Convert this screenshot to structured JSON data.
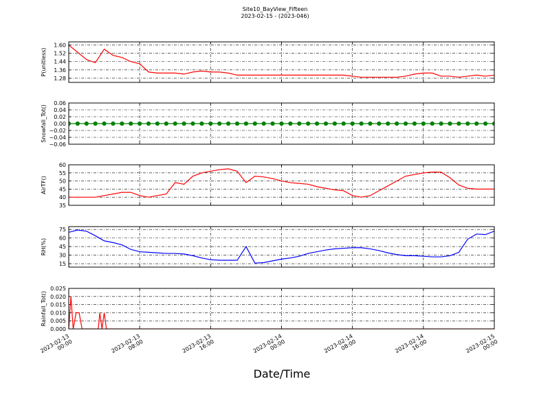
{
  "title": "Site10_BayView_Fifteen",
  "subtitle": "2023-02-15 - (2023-046)",
  "xlabel": "Date/Time",
  "x": [
    "2023-02-13 00:00",
    "2023-02-13 01:00",
    "2023-02-13 02:00",
    "2023-02-13 03:00",
    "2023-02-13 04:00",
    "2023-02-13 05:00",
    "2023-02-13 06:00",
    "2023-02-13 07:00",
    "2023-02-13 08:00",
    "2023-02-13 09:00",
    "2023-02-13 10:00",
    "2023-02-13 11:00",
    "2023-02-13 12:00",
    "2023-02-13 13:00",
    "2023-02-13 14:00",
    "2023-02-13 15:00",
    "2023-02-13 16:00",
    "2023-02-13 17:00",
    "2023-02-13 18:00",
    "2023-02-13 19:00",
    "2023-02-13 20:00",
    "2023-02-13 21:00",
    "2023-02-13 22:00",
    "2023-02-13 23:00",
    "2023-02-14 00:00",
    "2023-02-14 01:00",
    "2023-02-14 02:00",
    "2023-02-14 03:00",
    "2023-02-14 04:00",
    "2023-02-14 05:00",
    "2023-02-14 06:00",
    "2023-02-14 07:00",
    "2023-02-14 08:00",
    "2023-02-14 09:00",
    "2023-02-14 10:00",
    "2023-02-14 11:00",
    "2023-02-14 12:00",
    "2023-02-14 13:00",
    "2023-02-14 14:00",
    "2023-02-14 15:00",
    "2023-02-14 16:00",
    "2023-02-14 17:00",
    "2023-02-14 18:00",
    "2023-02-14 19:00",
    "2023-02-14 20:00",
    "2023-02-14 21:00",
    "2023-02-14 22:00",
    "2023-02-14 23:00",
    "2023-02-15 00:00"
  ],
  "xlim": [
    "2023-02-13 00:00",
    "2023-02-15 00:00"
  ],
  "xticks": [
    {
      "value": "2023-02-13 00:00",
      "label": "2023-02-13\n00:00"
    },
    {
      "value": "2023-02-13 08:00",
      "label": "2023-02-13\n08:00"
    },
    {
      "value": "2023-02-13 16:00",
      "label": "2023-02-13\n16:00"
    },
    {
      "value": "2023-02-14 00:00",
      "label": "2023-02-14\n00:00"
    },
    {
      "value": "2023-02-14 08:00",
      "label": "2023-02-14\n08:00"
    },
    {
      "value": "2023-02-14 16:00",
      "label": "2023-02-14\n16:00"
    },
    {
      "value": "2023-02-15 00:00",
      "label": "2023-02-15\n00:00"
    }
  ],
  "grid": true,
  "chart_data": [
    {
      "type": "line",
      "ylabel": "P(unitless)",
      "ylim": [
        1.24,
        1.63
      ],
      "yticks": [
        {
          "value": 1.28,
          "label": "1.28"
        },
        {
          "value": 1.36,
          "label": "1.36"
        },
        {
          "value": 1.44,
          "label": "1.44"
        },
        {
          "value": 1.52,
          "label": "1.52"
        },
        {
          "value": 1.6,
          "label": "1.60"
        }
      ],
      "series": [
        {
          "color": "#ff0000",
          "values": [
            1.6,
            1.53,
            1.46,
            1.43,
            1.56,
            1.5,
            1.48,
            1.44,
            1.42,
            1.34,
            1.33,
            1.33,
            1.33,
            1.32,
            1.34,
            1.35,
            1.34,
            1.34,
            1.33,
            1.31,
            1.31,
            1.31,
            1.31,
            1.31,
            1.31,
            1.31,
            1.31,
            1.31,
            1.31,
            1.31,
            1.31,
            1.31,
            1.3,
            1.29,
            1.29,
            1.29,
            1.29,
            1.29,
            1.3,
            1.32,
            1.33,
            1.33,
            1.3,
            1.3,
            1.29,
            1.3,
            1.31,
            1.3,
            1.31
          ]
        }
      ]
    },
    {
      "type": "line",
      "ylabel": "Snowfall_Tot()",
      "ylim": [
        -0.06,
        0.06
      ],
      "yticks": [
        {
          "value": -0.06,
          "label": "−0.06"
        },
        {
          "value": -0.04,
          "label": "−0.04"
        },
        {
          "value": -0.02,
          "label": "−0.02"
        },
        {
          "value": 0,
          "label": "0.00"
        },
        {
          "value": 0.02,
          "label": "0.02"
        },
        {
          "value": 0.04,
          "label": "0.04"
        },
        {
          "value": 0.06,
          "label": "0.06"
        }
      ],
      "series": [
        {
          "color": "#008000",
          "marker": "circle",
          "values": [
            0,
            0,
            0,
            0,
            0,
            0,
            0,
            0,
            0,
            0,
            0,
            0,
            0,
            0,
            0,
            0,
            0,
            0,
            0,
            0,
            0,
            0,
            0,
            0,
            0,
            0,
            0,
            0,
            0,
            0,
            0,
            0,
            0,
            0,
            0,
            0,
            0,
            0,
            0,
            0,
            0,
            0,
            0,
            0,
            0,
            0,
            0,
            0,
            0
          ]
        }
      ]
    },
    {
      "type": "line",
      "ylabel": "AirTF()",
      "ylim": [
        35,
        60
      ],
      "yticks": [
        35,
        40,
        45,
        50,
        55,
        60
      ],
      "series": [
        {
          "color": "#ff0000",
          "values": [
            40,
            40,
            40,
            40,
            41,
            42,
            43,
            43,
            41,
            40,
            41,
            42,
            49,
            48,
            53,
            55,
            56,
            57,
            57.5,
            56,
            49,
            53,
            52.5,
            51.5,
            50,
            49,
            48.5,
            48,
            46.5,
            45.5,
            44.5,
            44,
            41,
            40,
            41,
            44,
            47,
            50,
            53,
            54,
            55,
            55.5,
            55.5,
            52,
            47.5,
            45.5,
            45,
            45,
            45
          ]
        }
      ]
    },
    {
      "type": "line",
      "ylabel": "RH(%)",
      "ylim": [
        9,
        80
      ],
      "yticks": [
        15,
        30,
        45,
        60,
        75
      ],
      "series": [
        {
          "color": "#0000ff",
          "values": [
            70,
            74,
            72,
            64,
            55,
            52,
            48,
            40,
            36,
            35,
            34,
            33,
            33,
            32,
            29,
            25,
            22,
            21,
            21,
            21,
            45,
            16,
            17,
            20,
            23,
            25,
            28,
            33,
            36,
            39,
            41,
            42,
            43,
            43,
            41,
            38,
            34,
            31,
            29,
            29,
            28,
            27,
            27,
            29,
            35,
            58,
            67,
            66,
            72
          ]
        }
      ]
    },
    {
      "type": "line",
      "ylabel": "Rainfall_Tot()",
      "ylim": [
        0,
        0.025
      ],
      "yticks": [
        {
          "value": 0,
          "label": "0.000"
        },
        0.005,
        {
          "value": 0.01,
          "label": "0.010"
        },
        0.015,
        {
          "value": 0.02,
          "label": "0.020"
        },
        0.025
      ],
      "x": [
        "2023-02-13 00:00",
        "2023-02-13 00:15",
        "2023-02-13 00:30",
        "2023-02-13 00:50",
        "2023-02-13 01:10",
        "2023-02-13 01:30",
        "2023-02-13 03:20",
        "2023-02-13 03:30",
        "2023-02-13 03:45",
        "2023-02-13 04:00",
        "2023-02-13 04:15",
        "2023-02-15 00:00"
      ],
      "series": [
        {
          "color": "#ff0000",
          "values": [
            0,
            0.02,
            0,
            0.01,
            0.01,
            0,
            0,
            0.01,
            0,
            0.01,
            0,
            0
          ]
        }
      ]
    }
  ]
}
